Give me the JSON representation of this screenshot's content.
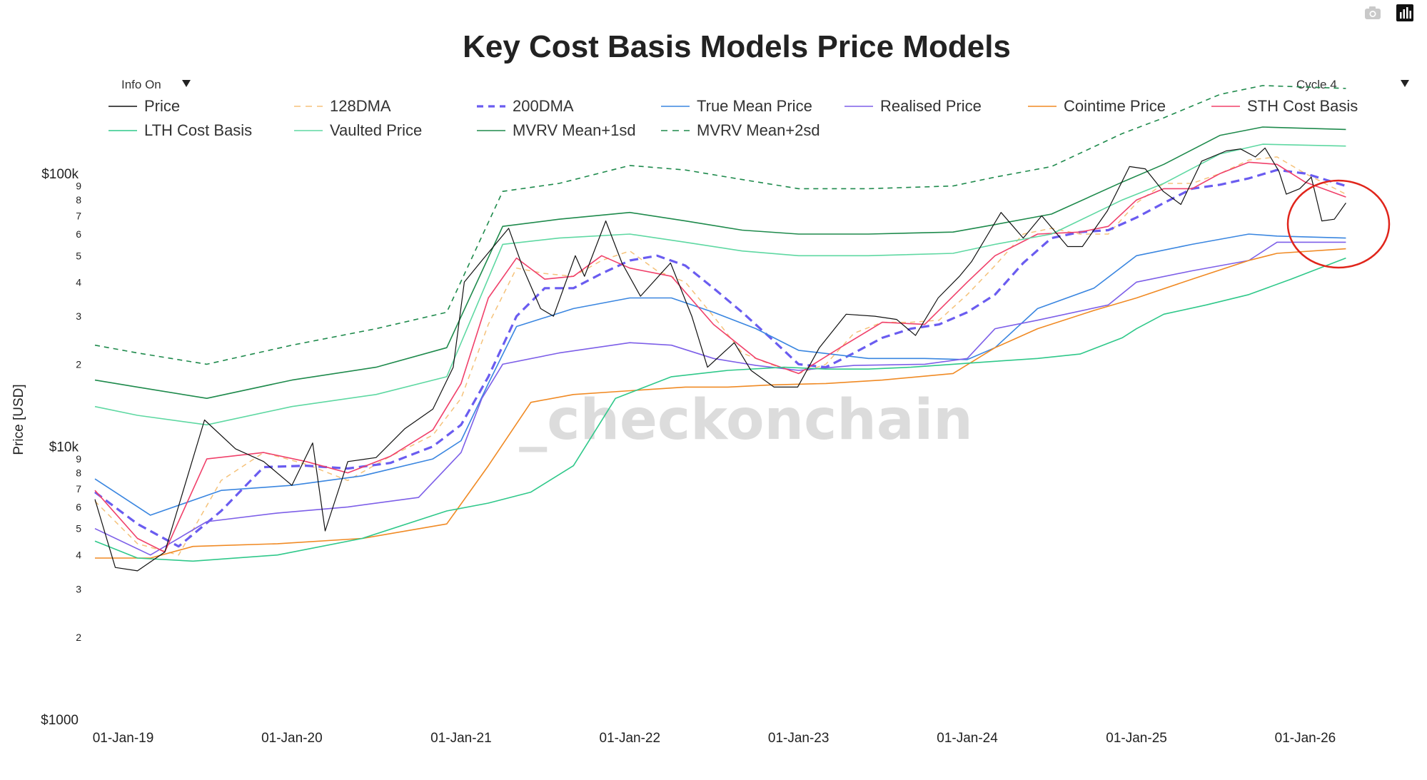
{
  "toolbar": {
    "camera_icon": "camera-icon",
    "chart_icon": "bar-chart-icon"
  },
  "controls": {
    "info_label": "Info On",
    "cycle_label": "Cycle 4",
    "dropdown_icon": "triangle-down-icon"
  },
  "watermark": "_checkonchain",
  "chart_data": {
    "type": "line",
    "title": "Key Cost Basis Models Price Models",
    "xlabel": "",
    "ylabel": "Price [USD]",
    "yscale": "log",
    "ylim": [
      1000,
      200000
    ],
    "xlim": [
      "2018-10-15",
      "2026-06-30"
    ],
    "x_ticks": [
      "01-Jan-19",
      "01-Jan-20",
      "01-Jan-21",
      "01-Jan-22",
      "01-Jan-23",
      "01-Jan-24",
      "01-Jan-25",
      "01-Jan-26"
    ],
    "x_tick_dates": [
      "2019-01-01",
      "2020-01-01",
      "2021-01-01",
      "2022-01-01",
      "2023-01-01",
      "2024-01-01",
      "2025-01-01",
      "2026-01-01"
    ],
    "y_major_ticks": [
      {
        "value": 1000,
        "label": "$1000"
      },
      {
        "value": 10000,
        "label": "$10k"
      },
      {
        "value": 100000,
        "label": "$100k"
      }
    ],
    "y_minor_ticks": [
      {
        "value": 2000,
        "label": "2"
      },
      {
        "value": 3000,
        "label": "3"
      },
      {
        "value": 4000,
        "label": "4"
      },
      {
        "value": 5000,
        "label": "5"
      },
      {
        "value": 6000,
        "label": "6"
      },
      {
        "value": 7000,
        "label": "7"
      },
      {
        "value": 8000,
        "label": "8"
      },
      {
        "value": 9000,
        "label": "9"
      },
      {
        "value": 20000,
        "label": "2"
      },
      {
        "value": 30000,
        "label": "3"
      },
      {
        "value": 40000,
        "label": "4"
      },
      {
        "value": 50000,
        "label": "5"
      },
      {
        "value": 60000,
        "label": "6"
      },
      {
        "value": 70000,
        "label": "7"
      },
      {
        "value": 80000,
        "label": "8"
      },
      {
        "value": 90000,
        "label": "9"
      }
    ],
    "legend_position": "top",
    "series": [
      {
        "name": "Price",
        "color": "#111111",
        "dash": "solid",
        "width": 1.2,
        "x": [
          "2018-11-01",
          "2018-12-15",
          "2019-02-01",
          "2019-04-01",
          "2019-06-26",
          "2019-09-01",
          "2019-11-01",
          "2020-01-01",
          "2020-02-15",
          "2020-03-13",
          "2020-05-01",
          "2020-07-01",
          "2020-09-01",
          "2020-11-01",
          "2020-12-15",
          "2021-01-08",
          "2021-02-15",
          "2021-04-14",
          "2021-05-15",
          "2021-06-22",
          "2021-07-20",
          "2021-09-05",
          "2021-09-25",
          "2021-11-10",
          "2021-12-15",
          "2022-01-24",
          "2022-03-30",
          "2022-05-15",
          "2022-06-18",
          "2022-08-15",
          "2022-09-20",
          "2022-11-09",
          "2022-12-30",
          "2023-02-15",
          "2023-04-14",
          "2023-06-15",
          "2023-08-01",
          "2023-09-11",
          "2023-10-30",
          "2023-12-15",
          "2024-01-10",
          "2024-03-14",
          "2024-05-01",
          "2024-06-10",
          "2024-08-05",
          "2024-09-06",
          "2024-10-30",
          "2024-12-17",
          "2025-01-20",
          "2025-02-28",
          "2025-04-07",
          "2025-05-22",
          "2025-07-14",
          "2025-08-14",
          "2025-09-15",
          "2025-10-06",
          "2025-11-05",
          "2025-11-21",
          "2025-12-20",
          "2026-01-14",
          "2026-02-06",
          "2026-03-05",
          "2026-03-30"
        ],
        "values": [
          6400,
          3600,
          3500,
          4100,
          12500,
          9800,
          8800,
          7200,
          10300,
          4900,
          8800,
          9100,
          11600,
          13700,
          19500,
          40000,
          48000,
          63000,
          45000,
          32000,
          30000,
          50000,
          42000,
          67000,
          47000,
          35500,
          47000,
          30000,
          19500,
          24000,
          19000,
          16500,
          16500,
          23000,
          30500,
          30000,
          29200,
          25500,
          35000,
          42000,
          47500,
          72000,
          58000,
          70000,
          54000,
          54000,
          73000,
          106000,
          104000,
          86000,
          77000,
          111000,
          121000,
          123000,
          115000,
          124000,
          102000,
          84000,
          88000,
          97000,
          67000,
          68000,
          78000
        ]
      },
      {
        "name": "128DMA",
        "color": "#f5c27a",
        "dash": "dashed",
        "width": 1.5,
        "x": [
          "2018-11-01",
          "2019-02-01",
          "2019-05-01",
          "2019-08-01",
          "2019-11-01",
          "2020-02-01",
          "2020-05-01",
          "2020-08-01",
          "2020-11-01",
          "2021-01-01",
          "2021-03-01",
          "2021-05-01",
          "2021-07-01",
          "2021-09-01",
          "2021-11-01",
          "2022-01-01",
          "2022-03-01",
          "2022-05-01",
          "2022-07-01",
          "2022-09-01",
          "2022-11-01",
          "2023-01-01",
          "2023-03-01",
          "2023-05-01",
          "2023-07-01",
          "2023-09-01",
          "2023-11-01",
          "2024-01-01",
          "2024-03-01",
          "2024-05-01",
          "2024-07-01",
          "2024-09-01",
          "2024-11-01",
          "2025-01-01",
          "2025-03-01",
          "2025-05-01",
          "2025-07-01",
          "2025-09-01",
          "2025-11-01",
          "2026-01-01",
          "2026-03-30"
        ],
        "values": [
          6300,
          4400,
          4000,
          7500,
          9500,
          8600,
          7500,
          9200,
          11000,
          15000,
          28000,
          45000,
          43000,
          42000,
          48000,
          52000,
          44000,
          40000,
          30000,
          22000,
          20000,
          18500,
          20000,
          26000,
          28500,
          28500,
          29000,
          36000,
          46000,
          60000,
          63000,
          60000,
          60000,
          78000,
          92000,
          92000,
          100000,
          112000,
          115000,
          100000,
          84000
        ]
      },
      {
        "name": "200DMA",
        "color": "#6a5cf0",
        "dash": "dashed",
        "width": 3.2,
        "x": [
          "2018-11-01",
          "2019-02-01",
          "2019-05-01",
          "2019-08-01",
          "2019-11-01",
          "2020-02-01",
          "2020-05-01",
          "2020-08-01",
          "2020-11-01",
          "2021-01-01",
          "2021-03-01",
          "2021-05-01",
          "2021-07-01",
          "2021-09-01",
          "2021-11-01",
          "2022-01-01",
          "2022-03-01",
          "2022-05-01",
          "2022-07-01",
          "2022-09-01",
          "2022-11-01",
          "2023-01-01",
          "2023-03-01",
          "2023-05-01",
          "2023-07-01",
          "2023-09-01",
          "2023-11-01",
          "2024-01-01",
          "2024-03-01",
          "2024-05-01",
          "2024-07-01",
          "2024-09-01",
          "2024-11-01",
          "2025-01-01",
          "2025-03-01",
          "2025-05-01",
          "2025-07-01",
          "2025-09-01",
          "2025-11-01",
          "2026-01-01",
          "2026-03-30"
        ],
        "values": [
          6800,
          5200,
          4300,
          5800,
          8400,
          8500,
          8300,
          8700,
          10000,
          12000,
          18000,
          30000,
          38000,
          38000,
          43000,
          48000,
          50000,
          46000,
          38000,
          31000,
          25000,
          20000,
          19500,
          22000,
          25000,
          27000,
          28000,
          31000,
          36000,
          47000,
          58000,
          61000,
          62000,
          69000,
          78000,
          88000,
          91000,
          96000,
          103000,
          100000,
          90000
        ]
      },
      {
        "name": "True Mean Price",
        "color": "#3a86e0",
        "dash": "solid",
        "width": 1.6,
        "x": [
          "2018-11-01",
          "2019-03-01",
          "2019-08-01",
          "2020-01-01",
          "2020-06-01",
          "2020-11-01",
          "2021-01-01",
          "2021-03-01",
          "2021-05-01",
          "2021-09-01",
          "2022-01-01",
          "2022-04-01",
          "2022-07-01",
          "2022-10-01",
          "2023-01-01",
          "2023-06-01",
          "2023-10-01",
          "2024-01-01",
          "2024-03-01",
          "2024-06-01",
          "2024-10-01",
          "2025-01-01",
          "2025-05-01",
          "2025-09-01",
          "2025-11-01",
          "2026-03-30"
        ],
        "values": [
          7600,
          5600,
          6900,
          7200,
          7800,
          9000,
          10500,
          17000,
          27500,
          32000,
          35000,
          35000,
          31000,
          27000,
          22500,
          21000,
          21000,
          20800,
          23000,
          32000,
          38000,
          50000,
          55000,
          60000,
          59000,
          58000
        ]
      },
      {
        "name": "Realised Price",
        "color": "#7d5fe8",
        "dash": "solid",
        "width": 1.6,
        "x": [
          "2018-11-01",
          "2019-03-01",
          "2019-07-01",
          "2019-12-01",
          "2020-05-01",
          "2020-10-01",
          "2021-01-01",
          "2021-02-15",
          "2021-04-01",
          "2021-08-01",
          "2022-01-01",
          "2022-04-01",
          "2022-07-01",
          "2022-10-01",
          "2023-01-01",
          "2023-05-01",
          "2023-10-01",
          "2024-01-01",
          "2024-03-01",
          "2024-06-01",
          "2024-11-01",
          "2025-01-01",
          "2025-05-01",
          "2025-09-01",
          "2025-11-01",
          "2026-03-30"
        ],
        "values": [
          5000,
          4000,
          5300,
          5700,
          6000,
          6500,
          9500,
          15000,
          20000,
          22000,
          24000,
          23500,
          21000,
          19800,
          19000,
          19800,
          20000,
          21000,
          27000,
          29000,
          33000,
          40000,
          44000,
          48000,
          56000,
          56000
        ]
      },
      {
        "name": "Cointime Price",
        "color": "#f08a24",
        "dash": "solid",
        "width": 1.6,
        "x": [
          "2018-11-01",
          "2019-03-01",
          "2019-06-01",
          "2019-12-01",
          "2020-06-01",
          "2020-12-01",
          "2021-03-01",
          "2021-06-01",
          "2021-09-01",
          "2022-01-01",
          "2022-05-01",
          "2022-08-01",
          "2022-11-01",
          "2023-03-01",
          "2023-07-01",
          "2023-12-01",
          "2024-03-01",
          "2024-06-01",
          "2024-10-01",
          "2025-01-01",
          "2025-05-01",
          "2025-09-01",
          "2025-11-01",
          "2026-03-30"
        ],
        "values": [
          3900,
          3900,
          4300,
          4400,
          4600,
          5200,
          8500,
          14500,
          15500,
          16000,
          16500,
          16500,
          16800,
          17000,
          17500,
          18500,
          23000,
          27000,
          31500,
          35000,
          41000,
          48000,
          51000,
          53000
        ]
      },
      {
        "name": "STH Cost Basis",
        "color": "#f0406a",
        "dash": "solid",
        "width": 1.6,
        "x": [
          "2018-11-01",
          "2019-02-01",
          "2019-04-01",
          "2019-07-01",
          "2019-11-01",
          "2020-02-01",
          "2020-05-01",
          "2020-08-01",
          "2020-11-01",
          "2021-01-01",
          "2021-03-01",
          "2021-05-01",
          "2021-07-01",
          "2021-09-01",
          "2021-11-01",
          "2022-01-01",
          "2022-04-01",
          "2022-07-01",
          "2022-10-01",
          "2023-01-01",
          "2023-04-01",
          "2023-07-01",
          "2023-10-01",
          "2024-01-01",
          "2024-03-01",
          "2024-06-01",
          "2024-09-01",
          "2024-11-01",
          "2025-01-01",
          "2025-03-01",
          "2025-05-01",
          "2025-07-01",
          "2025-09-01",
          "2025-11-01",
          "2026-01-01",
          "2026-03-30"
        ],
        "values": [
          6900,
          4600,
          4100,
          9000,
          9500,
          8800,
          8000,
          9200,
          11500,
          17000,
          35000,
          49000,
          41000,
          42000,
          50000,
          45000,
          42000,
          28000,
          21000,
          18500,
          23000,
          28500,
          28000,
          40000,
          50000,
          60000,
          61000,
          64000,
          80000,
          88000,
          88000,
          100000,
          110000,
          108000,
          93000,
          82000
        ]
      },
      {
        "name": "LTH Cost Basis",
        "color": "#2fc88a",
        "dash": "solid",
        "width": 1.6,
        "x": [
          "2018-11-01",
          "2019-02-01",
          "2019-06-01",
          "2019-12-01",
          "2020-06-01",
          "2020-12-01",
          "2021-03-01",
          "2021-06-01",
          "2021-09-01",
          "2021-12-01",
          "2022-04-01",
          "2022-08-01",
          "2022-12-01",
          "2023-03-01",
          "2023-06-01",
          "2023-09-01",
          "2023-12-01",
          "2024-03-01",
          "2024-06-01",
          "2024-09-01",
          "2024-12-01",
          "2025-01-01",
          "2025-03-01",
          "2025-06-01",
          "2025-09-01",
          "2025-12-01",
          "2026-03-30"
        ],
        "values": [
          4500,
          3900,
          3800,
          4000,
          4600,
          5800,
          6200,
          6800,
          8500,
          15000,
          18000,
          19000,
          19500,
          19200,
          19200,
          19500,
          20000,
          20500,
          21000,
          21800,
          25000,
          27000,
          30500,
          33000,
          36000,
          41000,
          49000
        ]
      },
      {
        "name": "Vaulted Price",
        "color": "#5ed8a2",
        "dash": "solid",
        "width": 1.6,
        "x": [
          "2018-11-01",
          "2019-02-01",
          "2019-07-01",
          "2020-01-01",
          "2020-07-01",
          "2020-12-01",
          "2021-04-01",
          "2021-08-01",
          "2022-01-01",
          "2022-05-01",
          "2022-09-01",
          "2023-01-01",
          "2023-06-01",
          "2023-12-01",
          "2024-03-01",
          "2024-07-01",
          "2024-12-01",
          "2025-03-01",
          "2025-07-01",
          "2025-10-01",
          "2026-03-30"
        ],
        "values": [
          14000,
          13000,
          12000,
          14000,
          15500,
          18000,
          55000,
          58000,
          60000,
          56000,
          52000,
          50000,
          50000,
          51000,
          55000,
          60000,
          80000,
          92000,
          118000,
          128000,
          126000
        ]
      },
      {
        "name": "MVRV Mean+1sd",
        "color": "#1e8a4c",
        "dash": "solid",
        "width": 1.6,
        "x": [
          "2018-11-01",
          "2019-02-01",
          "2019-07-01",
          "2020-01-01",
          "2020-07-01",
          "2020-12-01",
          "2021-04-01",
          "2021-08-01",
          "2022-01-01",
          "2022-05-01",
          "2022-09-01",
          "2023-01-01",
          "2023-06-01",
          "2023-12-01",
          "2024-03-01",
          "2024-07-01",
          "2024-12-01",
          "2025-03-01",
          "2025-07-01",
          "2025-10-01",
          "2026-03-30"
        ],
        "values": [
          17500,
          16500,
          15000,
          17500,
          19500,
          23000,
          64000,
          68000,
          72000,
          67000,
          62000,
          60000,
          60000,
          61000,
          65000,
          71000,
          93000,
          108000,
          138000,
          148000,
          145000
        ]
      },
      {
        "name": "MVRV Mean+2sd",
        "color": "#1e8a4c",
        "dash": "dashed",
        "width": 1.6,
        "x": [
          "2018-11-01",
          "2019-02-01",
          "2019-07-01",
          "2020-01-01",
          "2020-07-01",
          "2020-12-01",
          "2021-04-01",
          "2021-08-01",
          "2022-01-01",
          "2022-05-01",
          "2022-09-01",
          "2023-01-01",
          "2023-06-01",
          "2023-12-01",
          "2024-03-01",
          "2024-07-01",
          "2024-12-01",
          "2025-03-01",
          "2025-07-01",
          "2025-10-01",
          "2026-03-30"
        ],
        "values": [
          23500,
          22000,
          20000,
          23500,
          27000,
          31000,
          86000,
          92000,
          107000,
          103000,
          95000,
          88000,
          88000,
          90000,
          97000,
          106000,
          140000,
          160000,
          195000,
          210000,
          205000
        ]
      }
    ]
  }
}
